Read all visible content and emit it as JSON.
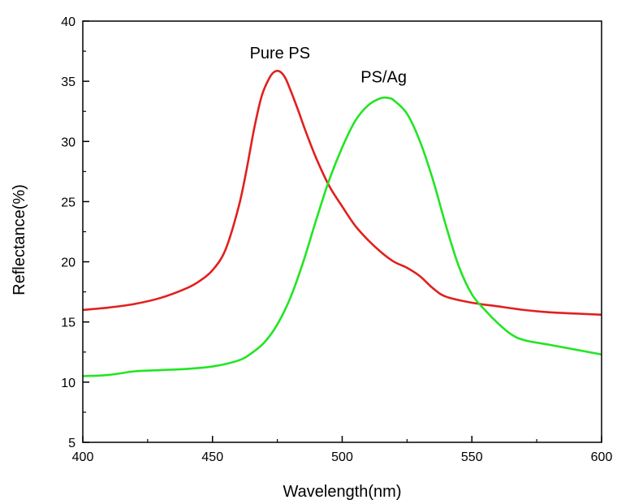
{
  "chart_data": {
    "type": "line",
    "title": "",
    "xlabel": "Wavelength(nm)",
    "ylabel": "Reflectance(%)",
    "xlim": [
      400,
      600
    ],
    "ylim": [
      5,
      40
    ],
    "x_ticks": [
      400,
      450,
      500,
      550,
      600
    ],
    "x_tick_labels": [
      "400",
      "450",
      "500",
      "550",
      "600"
    ],
    "y_ticks": [
      5,
      10,
      15,
      20,
      25,
      30,
      35,
      40
    ],
    "y_tick_labels": [
      "5",
      "10",
      "15",
      "20",
      "25",
      "30",
      "35",
      "40"
    ],
    "grid": false,
    "legend": "none",
    "series": [
      {
        "name": "Pure PS",
        "color": "#e0201e",
        "x": [
          400,
          410,
          420,
          430,
          440,
          445,
          450,
          455,
          460,
          463,
          466,
          469,
          472,
          474,
          476,
          478,
          480,
          483,
          486,
          490,
          495,
          500,
          505,
          510,
          515,
          520,
          525,
          530,
          535,
          540,
          550,
          560,
          570,
          580,
          590,
          600
        ],
        "y": [
          16.0,
          16.2,
          16.5,
          17.0,
          17.8,
          18.4,
          19.3,
          21.0,
          24.5,
          27.5,
          31.0,
          33.8,
          35.3,
          35.8,
          35.8,
          35.3,
          34.3,
          32.6,
          30.8,
          28.6,
          26.3,
          24.6,
          23.0,
          21.8,
          20.8,
          20.0,
          19.5,
          18.8,
          17.8,
          17.1,
          16.6,
          16.3,
          16.0,
          15.8,
          15.7,
          15.6
        ]
      },
      {
        "name": "PS/Ag",
        "color": "#22e522",
        "x": [
          400,
          410,
          420,
          430,
          440,
          450,
          460,
          465,
          470,
          475,
          480,
          485,
          490,
          495,
          500,
          505,
          510,
          515,
          518,
          520,
          525,
          530,
          535,
          540,
          545,
          550,
          555,
          560,
          565,
          570,
          580,
          590,
          600
        ],
        "y": [
          10.5,
          10.6,
          10.9,
          11.0,
          11.1,
          11.3,
          11.8,
          12.4,
          13.3,
          14.8,
          17.0,
          20.0,
          23.5,
          26.8,
          29.5,
          31.7,
          33.0,
          33.6,
          33.6,
          33.4,
          32.3,
          30.0,
          26.8,
          23.0,
          19.6,
          17.3,
          16.0,
          14.9,
          14.0,
          13.5,
          13.1,
          12.7,
          12.3
        ]
      }
    ],
    "annotations": [
      {
        "text": "Pure PS",
        "x": 476,
        "y": 36.9,
        "anchor": "middle"
      },
      {
        "text": "PS/Ag",
        "x": 516,
        "y": 34.9,
        "anchor": "middle"
      }
    ]
  }
}
